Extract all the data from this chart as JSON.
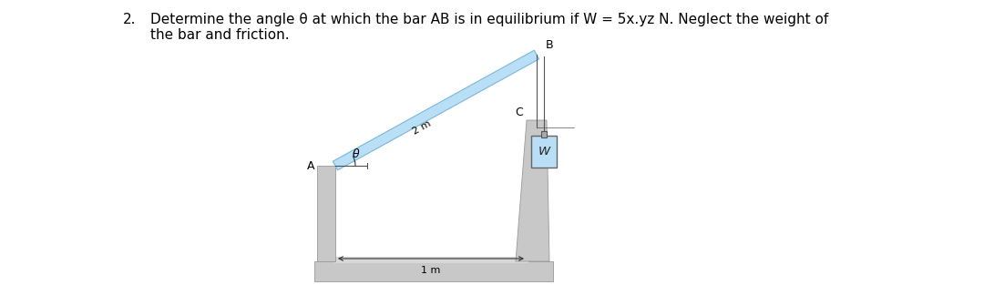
{
  "title_number": "2.",
  "title_text": "Determine the angle θ at which the bar AB is in equilibrium if W = 5x.yz N. Neglect the weight of\nthe bar and friction.",
  "title_fontsize": 11,
  "bg_color": "#ffffff",
  "text_color": "#000000",
  "wall_color": "#c8c8c8",
  "wall_edge_color": "#999999",
  "bar_fill": "#b8dff5",
  "bar_edge": "#7ab8d8",
  "weight_fill": "#b8dff5",
  "weight_edge": "#666666",
  "rope_color": "#555555",
  "label_A": "A",
  "label_B": "B",
  "label_C": "C",
  "label_2m": "2 m",
  "label_1m": "1 m",
  "label_theta": "θ",
  "label_W": "W",
  "fontsize_label": 9,
  "fontsize_dim": 8
}
